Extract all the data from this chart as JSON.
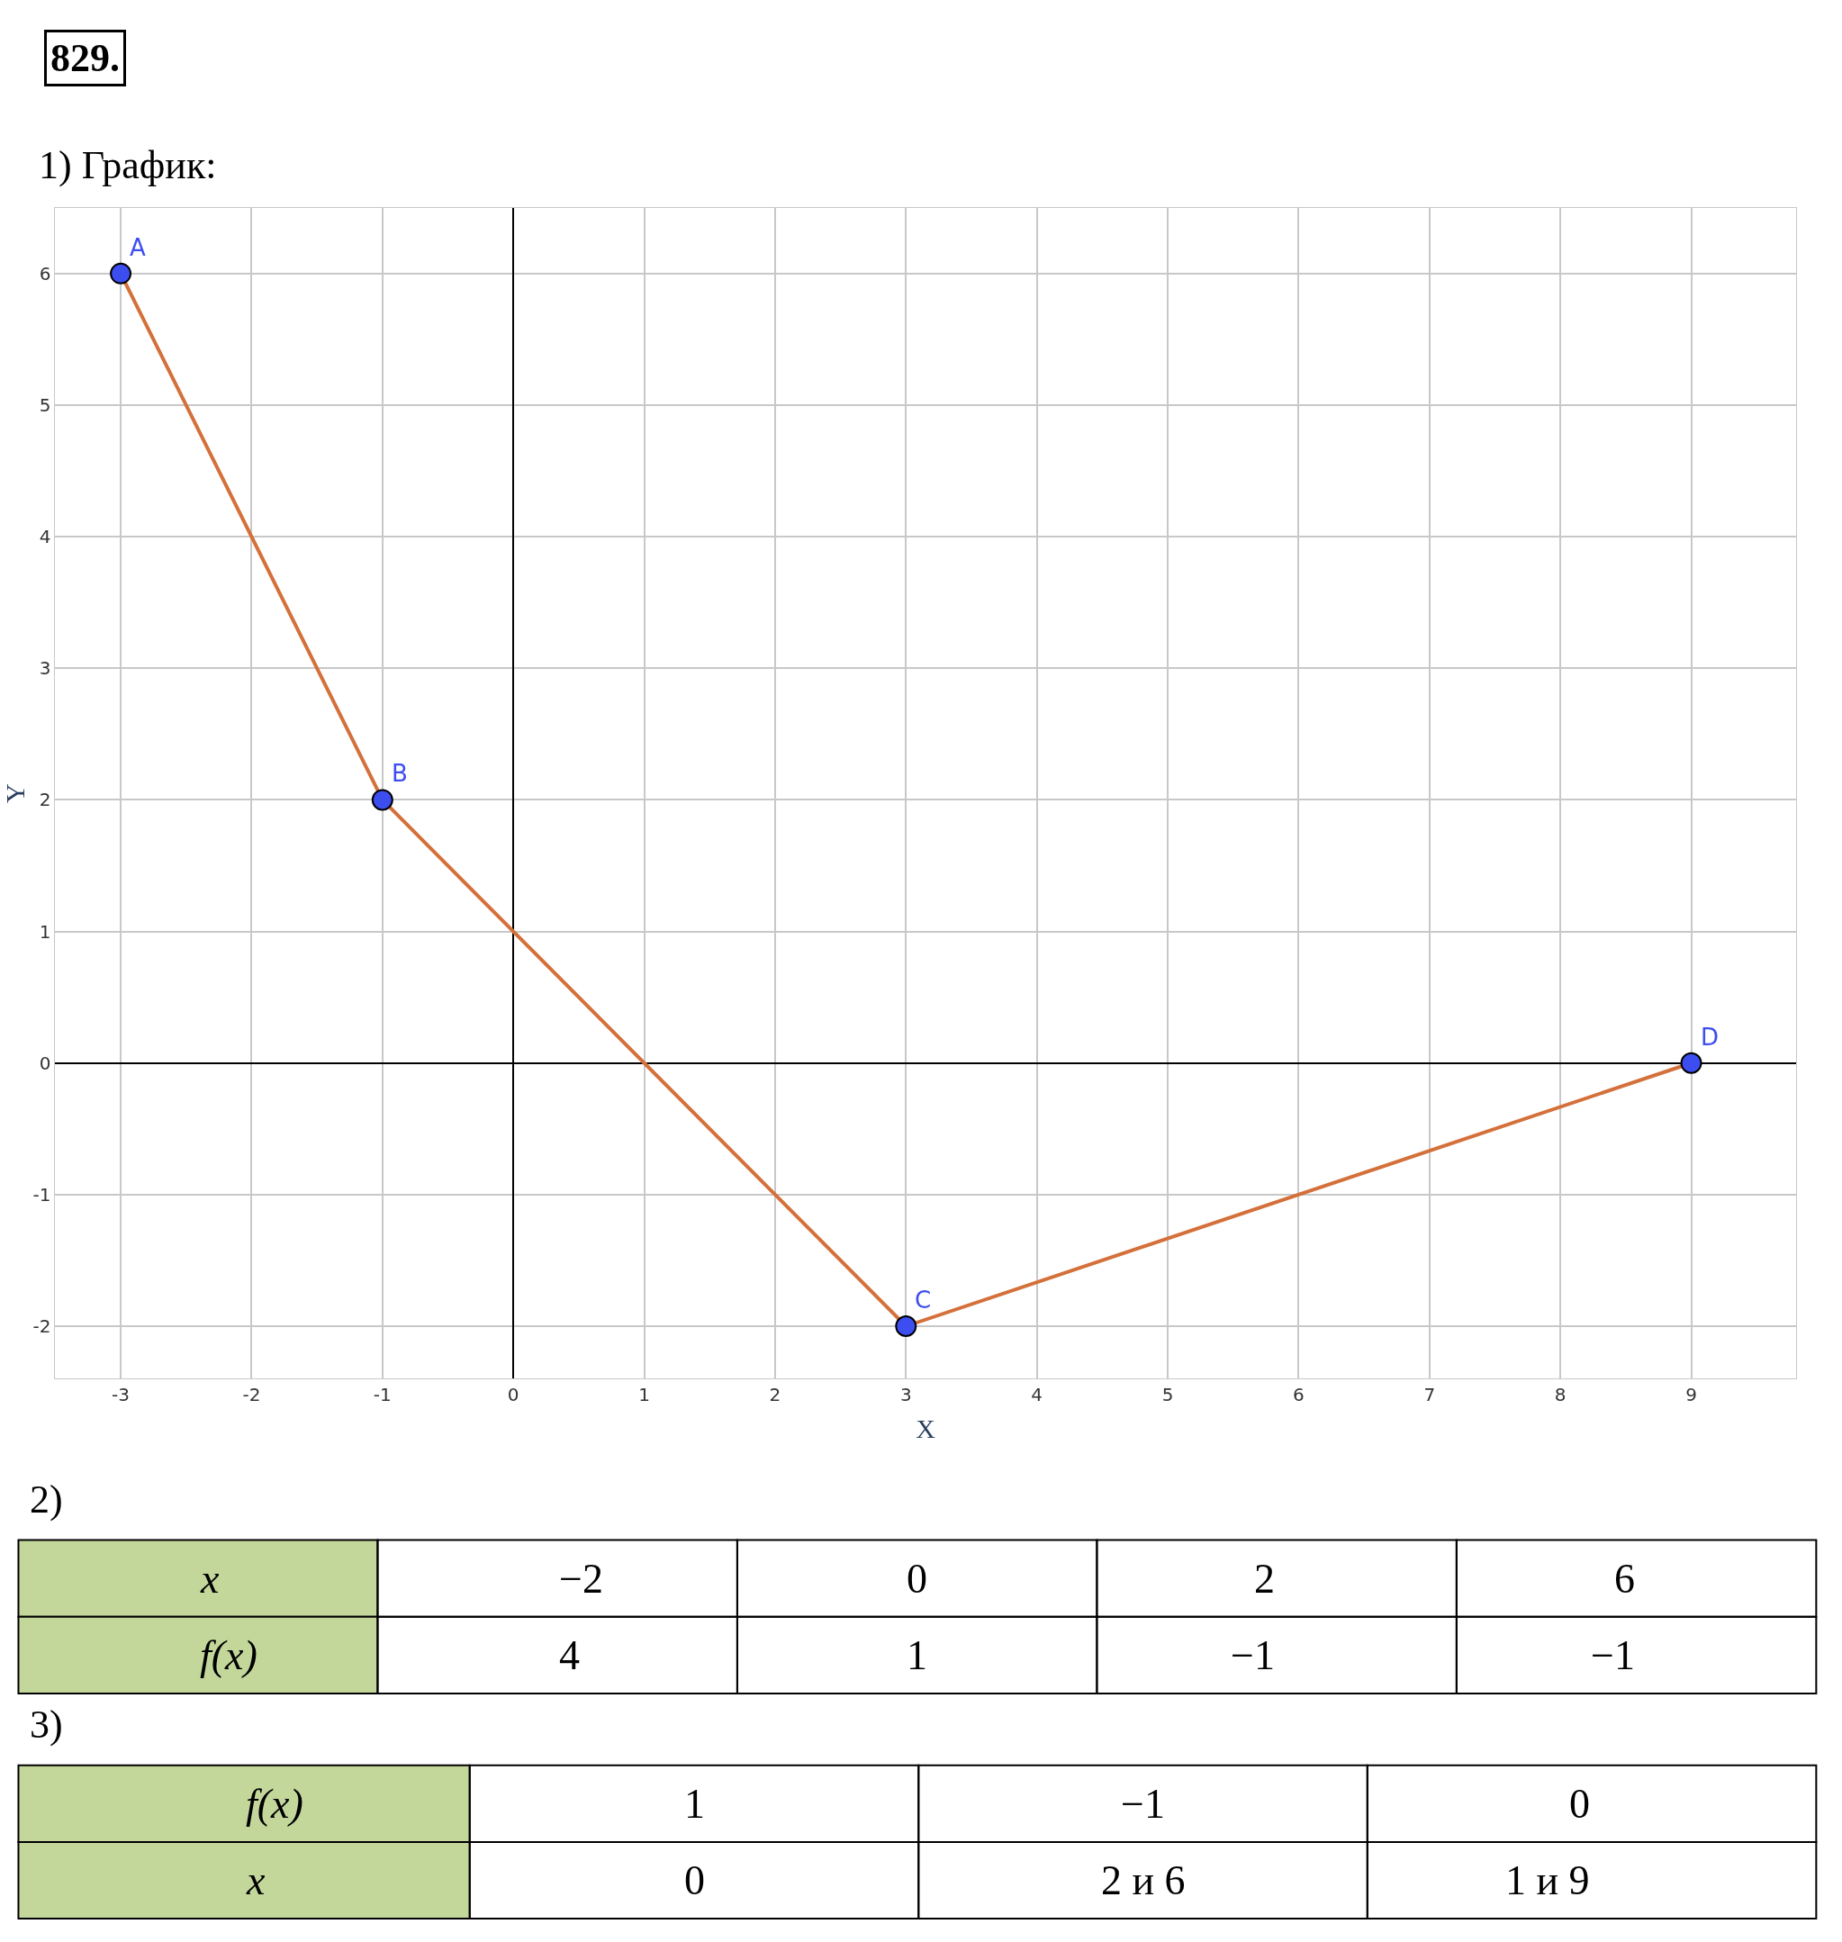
{
  "chart_data": [
    {
      "type": "line",
      "title": "829.",
      "subtitle": "1) График:",
      "xlabel": "X",
      "ylabel": "Y",
      "x": [
        -3,
        -1,
        3,
        9
      ],
      "series": [
        {
          "color": "#d4703a",
          "colors": [
            "#3d4ef0",
            "#3d4ef0",
            "#3d4ef0",
            "#3d4ef0"
          ],
          "values": [
            6,
            2,
            -2,
            0
          ]
        }
      ],
      "annotations": [
        {
          "text": "A",
          "x": -3,
          "y": 6
        },
        {
          "text": "B",
          "x": -1,
          "y": 2
        },
        {
          "text": "C",
          "x": 3,
          "y": -2
        },
        {
          "text": "D",
          "x": 9,
          "y": 0
        }
      ],
      "xlim": [
        -3.5,
        9.8
      ],
      "ylim": [
        -2.4,
        6.5
      ],
      "xticks": [
        -3,
        -2,
        -1,
        0,
        1,
        2,
        3,
        4,
        5,
        6,
        7,
        8,
        9
      ],
      "yticks": [
        -2,
        -1,
        0,
        1,
        2,
        3,
        4,
        5,
        6
      ],
      "grid": true,
      "marker": "circle"
    },
    {
      "type": "other",
      "title": "2)",
      "y_categories": [
        "x",
        "f(x)"
      ],
      "cell_labels": [
        [
          "−2",
          "0",
          "2",
          "6"
        ],
        [
          "4",
          "1",
          "−1",
          "−1"
        ]
      ]
    },
    {
      "type": "other",
      "title": "3)",
      "y_categories": [
        "f(x)",
        "x"
      ],
      "cell_labels": [
        [
          "1",
          "−1",
          "0"
        ],
        [
          "0",
          "2 и 6",
          "1 и 9"
        ]
      ]
    }
  ]
}
